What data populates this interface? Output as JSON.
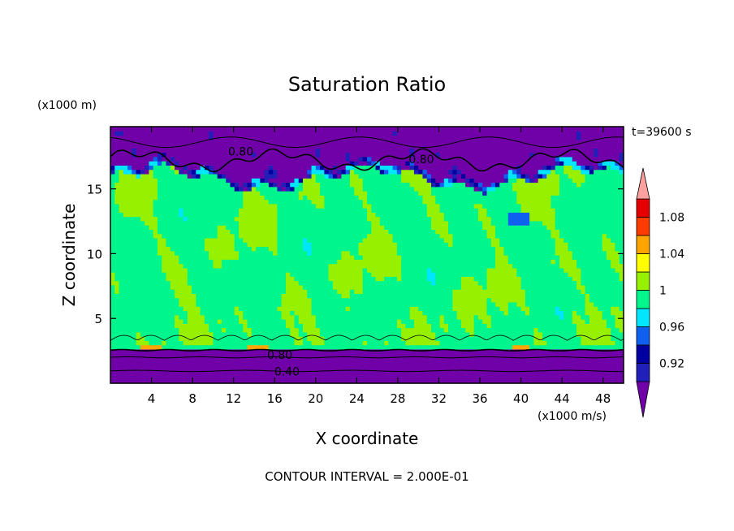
{
  "chart_data": {
    "type": "heatmap",
    "title": "Saturation Ratio",
    "xlabel": "X coordinate",
    "ylabel": "Z coordinate",
    "x_unit": "(x1000 m/s)",
    "y_unit": "(x1000 m)",
    "time_label": "t=39600 s",
    "footer": "CONTOUR INTERVAL = 2.000E-01",
    "xlim": [
      0,
      50
    ],
    "ylim": [
      0,
      19.8
    ],
    "x_ticks": [
      "4",
      "8",
      "12",
      "16",
      "20",
      "24",
      "28",
      "32",
      "36",
      "40",
      "44",
      "48"
    ],
    "x_tick_values": [
      4,
      8,
      12,
      16,
      20,
      24,
      28,
      32,
      36,
      40,
      44,
      48
    ],
    "y_ticks": [
      "5",
      "10",
      "15"
    ],
    "y_tick_values": [
      5,
      10,
      15
    ],
    "colorbar": {
      "levels": [
        0.9,
        0.92,
        0.94,
        0.96,
        0.98,
        1.0,
        1.02,
        1.04,
        1.06,
        1.08,
        1.1
      ],
      "colors": [
        "#5e00a8",
        "#2020b8",
        "#0000a0",
        "#1060f0",
        "#00e6ff",
        "#00f58c",
        "#96f000",
        "#ffff00",
        "#ffa500",
        "#ff3c00",
        "#e60000",
        "#ffa0a0"
      ],
      "under_color": "#7000a8",
      "over_color": "#ffa0a0",
      "labels": [
        "0.92",
        "0.96",
        "1",
        "1.04",
        "1.08"
      ],
      "label_values": [
        0.92,
        0.96,
        1.0,
        1.04,
        1.08
      ]
    },
    "contour_labels": [
      {
        "text": "0.80",
        "x": 12.7,
        "z": 17.9
      },
      {
        "text": "0.80",
        "x": 30.3,
        "z": 17.3
      },
      {
        "text": "0.80",
        "x": 16.5,
        "z": 2.2
      },
      {
        "text": "0.40",
        "x": 17.2,
        "z": 0.9
      }
    ],
    "regions": [
      {
        "name": "upper-dry-layer",
        "z_from": 16.0,
        "z_to": 19.8,
        "value": 0.82
      },
      {
        "name": "cloud-layer",
        "z_from": 2.7,
        "z_to": 16.0,
        "value": 0.99
      },
      {
        "name": "moist-patches",
        "value": 1.005
      },
      {
        "name": "lower-dry-layer",
        "z_from": 0.0,
        "z_to": 2.7,
        "value": 0.75
      }
    ]
  }
}
